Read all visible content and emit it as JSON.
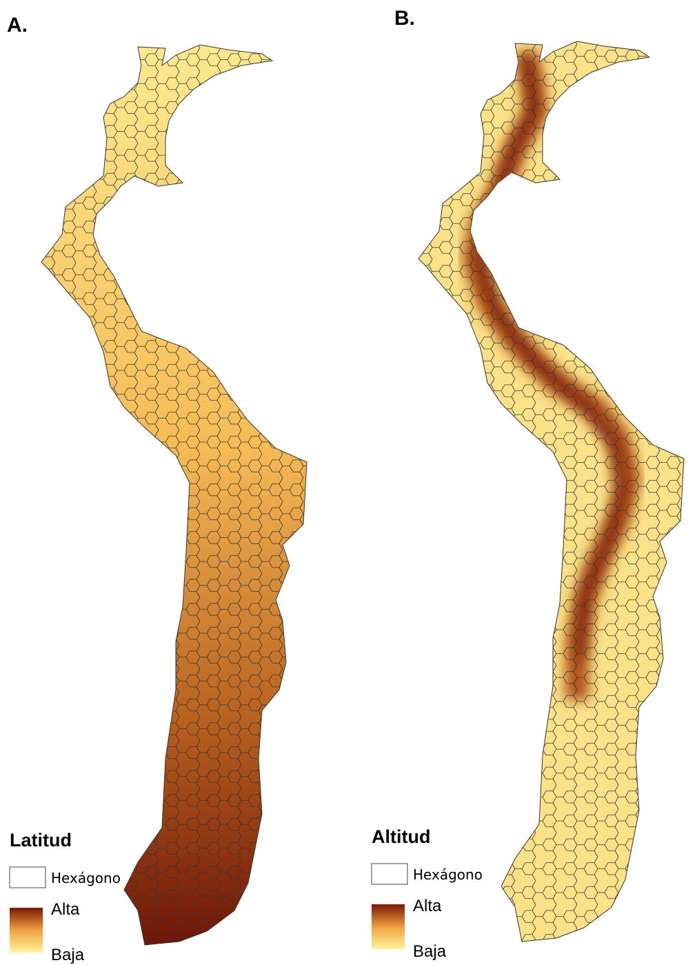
{
  "panels": [
    {
      "label": "A.",
      "legend": {
        "title": "Latitud",
        "hexagon": "Hexágono",
        "high": "Alta",
        "low": "Baja"
      }
    },
    {
      "label": "B.",
      "legend": {
        "title": "Altitud",
        "hexagon": "Hexágono",
        "high": "Alta",
        "low": "Baja"
      }
    }
  ]
}
